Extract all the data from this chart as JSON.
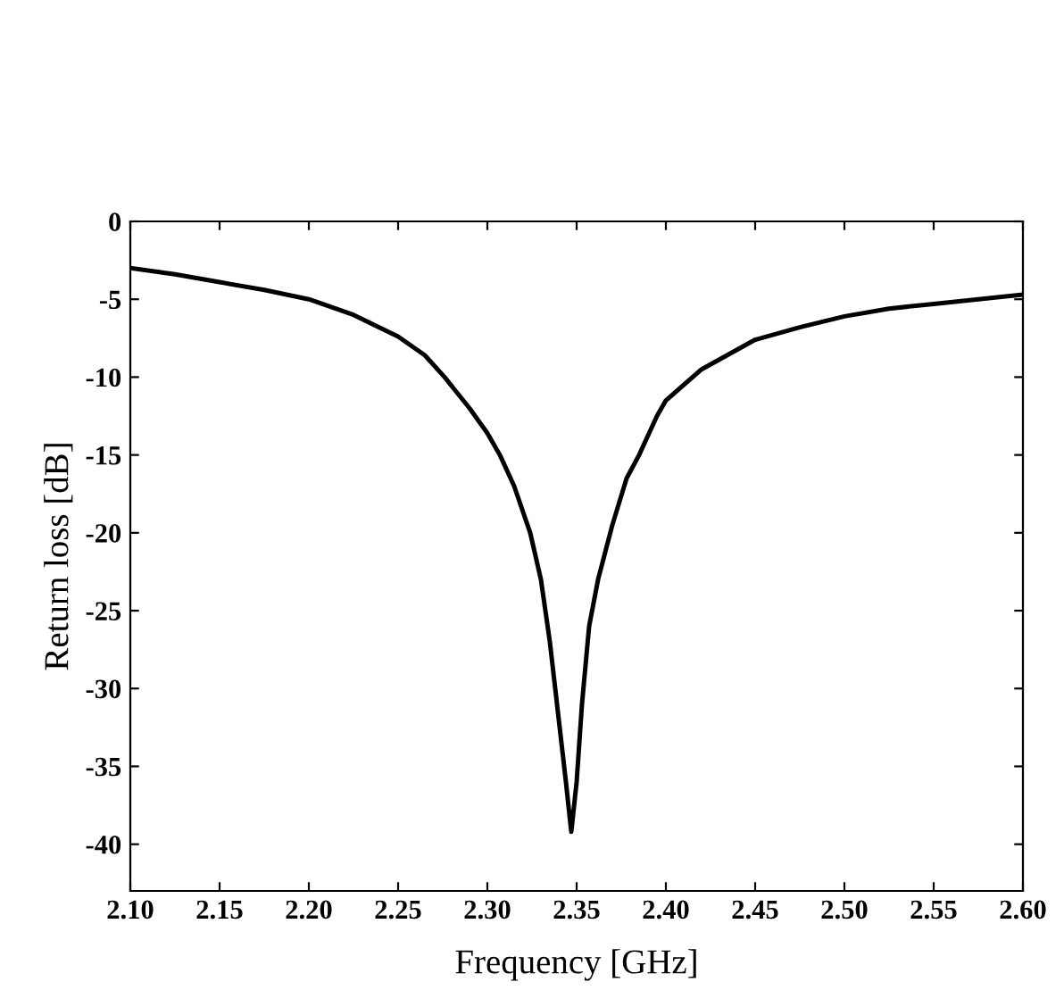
{
  "chart_data": {
    "type": "line",
    "xlabel": "Frequency [GHz]",
    "ylabel": "Return loss [dB]",
    "x": [
      2.1,
      2.125,
      2.15,
      2.175,
      2.2,
      2.225,
      2.25,
      2.265,
      2.276,
      2.29,
      2.3,
      2.307,
      2.315,
      2.324,
      2.33,
      2.335,
      2.34,
      2.344,
      2.347,
      2.35,
      2.353,
      2.357,
      2.362,
      2.37,
      2.378,
      2.385,
      2.395,
      2.4,
      2.42,
      2.45,
      2.475,
      2.5,
      2.525,
      2.55,
      2.575,
      2.6
    ],
    "series": [
      {
        "color": "#000000",
        "values": [
          -3.0,
          -3.4,
          -3.9,
          -4.4,
          -5.0,
          -6.0,
          -7.4,
          -8.6,
          -10.0,
          -12.0,
          -13.6,
          -15.0,
          -17.0,
          -20.0,
          -23.0,
          -27.0,
          -32.0,
          -36.0,
          -39.2,
          -36.0,
          -31.0,
          -26.0,
          -23.0,
          -19.5,
          -16.5,
          -15.0,
          -12.5,
          -11.5,
          -9.5,
          -7.6,
          -6.8,
          -6.1,
          -5.6,
          -5.3,
          -5.0,
          -4.7
        ]
      }
    ],
    "xlim": [
      2.1,
      2.6
    ],
    "ylim": [
      -43,
      0
    ],
    "xticks": [
      {
        "value": 2.1,
        "label": "2.10"
      },
      {
        "value": 2.15,
        "label": "2.15"
      },
      {
        "value": 2.2,
        "label": "2.20"
      },
      {
        "value": 2.25,
        "label": "2.25"
      },
      {
        "value": 2.3,
        "label": "2.30"
      },
      {
        "value": 2.35,
        "label": "2.35"
      },
      {
        "value": 2.4,
        "label": "2.40"
      },
      {
        "value": 2.45,
        "label": "2.45"
      },
      {
        "value": 2.5,
        "label": "2.50"
      },
      {
        "value": 2.55,
        "label": "2.55"
      },
      {
        "value": 2.6,
        "label": "2.60"
      }
    ],
    "yticks": [
      0,
      -5,
      -10,
      -15,
      -20,
      -25,
      -30,
      -35,
      -40
    ],
    "grid": false,
    "legend": false,
    "marker": "none",
    "line_style": "solid"
  }
}
